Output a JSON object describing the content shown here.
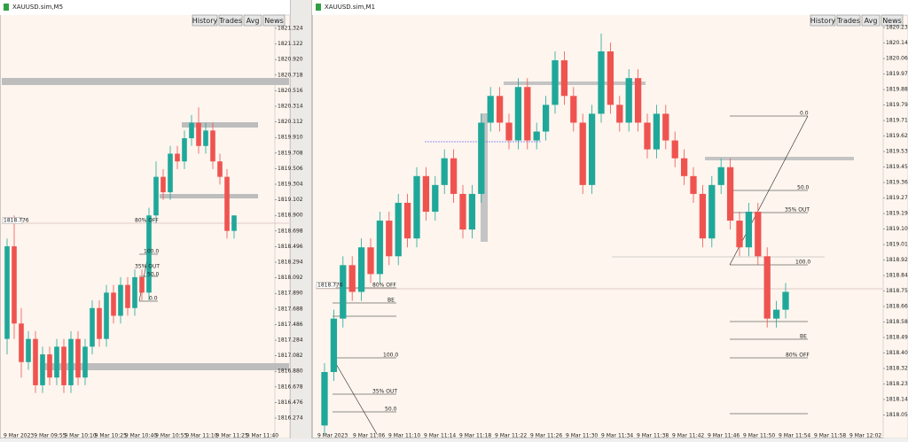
{
  "windows": [
    {
      "title": "XAUUSD.sim,M5",
      "buttons": [
        "History",
        "Trades",
        "Avg",
        "News"
      ],
      "price_marker": "1818.776",
      "ylim": [
        1816.068,
        1821.496
      ],
      "price_ticks": [
        1821.324,
        1821.122,
        {
          "value": 1820.92,
          "label": "1820.920"
        },
        1820.718,
        1820.516,
        1820.314,
        1820.112,
        {
          "value": 1819.91,
          "label": "1819.910"
        },
        1819.708,
        1819.506,
        1819.304,
        1819.102,
        {
          "value": 1818.9,
          "label": "1818.900"
        },
        1818.698,
        1818.496,
        1818.294,
        1818.092,
        {
          "value": 1817.89,
          "label": "1817.890"
        },
        1817.688,
        1817.486,
        1817.284,
        1817.082,
        {
          "value": 1816.88,
          "label": "1816.880"
        },
        1816.678,
        1816.476,
        1816.274
      ],
      "time_labels": [
        "9 Mar 2023",
        "9 Mar 09:55",
        "9 Mar 10:10",
        "9 Mar 10:25",
        "9 Mar 10:40",
        "9 Mar 10:55",
        "9 Mar 11:10",
        "9 Mar 11:25",
        "9 Mar 11:40"
      ],
      "level_labels": [
        "80% OFF",
        "100.0",
        "35% OUT",
        "50.0",
        "0.0"
      ],
      "candles": [
        [
          1817.3,
          1818.6,
          1817.1,
          1818.5
        ],
        [
          1818.5,
          1818.9,
          1817.3,
          1817.5
        ],
        [
          1817.5,
          1817.7,
          1816.8,
          1817.0
        ],
        [
          1817.0,
          1817.4,
          1816.9,
          1817.3
        ],
        [
          1817.3,
          1817.4,
          1816.6,
          1816.7
        ],
        [
          1816.7,
          1817.2,
          1816.6,
          1817.1
        ],
        [
          1817.1,
          1817.2,
          1816.7,
          1816.8
        ],
        [
          1816.8,
          1817.3,
          1816.7,
          1817.2
        ],
        [
          1817.2,
          1817.3,
          1816.6,
          1816.7
        ],
        [
          1816.7,
          1817.4,
          1816.6,
          1817.3
        ],
        [
          1817.3,
          1817.4,
          1816.7,
          1816.8
        ],
        [
          1816.8,
          1817.3,
          1816.7,
          1817.2
        ],
        [
          1817.2,
          1817.8,
          1817.1,
          1817.7
        ],
        [
          1817.7,
          1817.8,
          1817.2,
          1817.3
        ],
        [
          1817.3,
          1818.0,
          1817.2,
          1817.9
        ],
        [
          1817.9,
          1818.0,
          1817.5,
          1817.6
        ],
        [
          1817.6,
          1818.1,
          1817.5,
          1818.0
        ],
        [
          1818.0,
          1818.1,
          1817.6,
          1817.7
        ],
        [
          1817.7,
          1818.2,
          1817.6,
          1818.1
        ],
        [
          1818.1,
          1818.2,
          1817.8,
          1817.9
        ],
        [
          1817.9,
          1819.0,
          1817.8,
          1818.9
        ],
        [
          1818.9,
          1819.6,
          1818.8,
          1819.4
        ],
        [
          1819.4,
          1819.5,
          1819.1,
          1819.2
        ],
        [
          1819.2,
          1819.8,
          1819.1,
          1819.7
        ],
        [
          1819.7,
          1819.8,
          1819.5,
          1819.6
        ],
        [
          1819.6,
          1820.0,
          1819.5,
          1819.9
        ],
        [
          1819.9,
          1820.2,
          1819.8,
          1820.1
        ],
        [
          1820.1,
          1820.3,
          1819.7,
          1819.8
        ],
        [
          1819.8,
          1820.1,
          1819.7,
          1820.0
        ],
        [
          1820.0,
          1820.1,
          1819.5,
          1819.6
        ],
        [
          1819.6,
          1819.7,
          1819.3,
          1819.4
        ],
        [
          1819.4,
          1819.5,
          1818.6,
          1818.7
        ],
        [
          1818.7,
          1818.9,
          1818.6,
          1818.9
        ]
      ]
    },
    {
      "title": "XAUUSD.sim,M1",
      "buttons": [
        "History",
        "Trades",
        "Avg",
        "News"
      ],
      "price_marker": "1818.776",
      "ylim": [
        1817.952,
        1820.304
      ],
      "price_ticks": [
        1820.234,
        1820.147,
        {
          "value": 1820.06,
          "label": "1820.060"
        },
        1819.973,
        1819.886,
        1819.799,
        1819.712,
        1819.625,
        1819.538,
        1819.451,
        1819.364,
        1819.277,
        {
          "value": 1819.19,
          "label": "1819.190"
        },
        1819.103,
        1819.016,
        1818.929,
        1818.842,
        1818.755,
        1818.668,
        1818.581,
        1818.494,
        1818.407,
        {
          "value": 1818.32,
          "label": "1818.320"
        },
        1818.233,
        1818.146,
        1818.059
      ],
      "time_labels": [
        "9 Mar 2023",
        "9 Mar 11:06",
        "9 Mar 11:10",
        "9 Mar 11:14",
        "9 Mar 11:18",
        "9 Mar 11:22",
        "9 Mar 11:26",
        "9 Mar 11:30",
        "9 Mar 11:34",
        "9 Mar 11:38",
        "9 Mar 11:42",
        "9 Mar 11:46",
        "9 Mar 11:50",
        "9 Mar 11:54",
        "9 Mar 11:58",
        "9 Mar 12:02"
      ],
      "level_labels": [
        "0.0",
        "50.0",
        "35% OUT",
        "100.0",
        "BE",
        "80% OFF",
        "80% OFF",
        "BE",
        "100.0",
        "35% OUT",
        "50.0"
      ],
      "candles": [
        [
          1818.0,
          1818.35,
          1817.95,
          1818.3
        ],
        [
          1818.3,
          1818.65,
          1818.25,
          1818.6
        ],
        [
          1818.6,
          1818.95,
          1818.55,
          1818.9
        ],
        [
          1818.9,
          1818.95,
          1818.7,
          1818.75
        ],
        [
          1818.75,
          1819.05,
          1818.7,
          1819.0
        ],
        [
          1819.0,
          1819.05,
          1818.8,
          1818.85
        ],
        [
          1818.85,
          1819.2,
          1818.8,
          1819.15
        ],
        [
          1819.15,
          1819.2,
          1818.9,
          1818.95
        ],
        [
          1818.95,
          1819.3,
          1818.9,
          1819.25
        ],
        [
          1819.25,
          1819.3,
          1819.0,
          1819.05
        ],
        [
          1819.05,
          1819.45,
          1819.0,
          1819.4
        ],
        [
          1819.4,
          1819.45,
          1819.15,
          1819.2
        ],
        [
          1819.2,
          1819.4,
          1819.15,
          1819.35
        ],
        [
          1819.35,
          1819.55,
          1819.3,
          1819.5
        ],
        [
          1819.5,
          1819.55,
          1819.25,
          1819.3
        ],
        [
          1819.3,
          1819.35,
          1819.05,
          1819.1
        ],
        [
          1819.1,
          1819.35,
          1819.05,
          1819.3
        ],
        [
          1819.3,
          1819.75,
          1819.25,
          1819.7
        ],
        [
          1819.7,
          1819.9,
          1819.65,
          1819.85
        ],
        [
          1819.85,
          1819.9,
          1819.65,
          1819.7
        ],
        [
          1819.7,
          1819.75,
          1819.55,
          1819.6
        ],
        [
          1819.6,
          1819.95,
          1819.55,
          1819.9
        ],
        [
          1819.9,
          1819.95,
          1819.55,
          1819.6
        ],
        [
          1819.6,
          1819.7,
          1819.55,
          1819.65
        ],
        [
          1819.65,
          1819.85,
          1819.6,
          1819.8
        ],
        [
          1819.8,
          1820.1,
          1819.75,
          1820.05
        ],
        [
          1820.05,
          1820.1,
          1819.8,
          1819.85
        ],
        [
          1819.85,
          1819.9,
          1819.65,
          1819.7
        ],
        [
          1819.7,
          1819.75,
          1819.3,
          1819.35
        ],
        [
          1819.35,
          1819.8,
          1819.3,
          1819.75
        ],
        [
          1819.75,
          1820.2,
          1819.7,
          1820.1
        ],
        [
          1820.1,
          1820.15,
          1819.75,
          1819.8
        ],
        [
          1819.8,
          1819.85,
          1819.65,
          1819.7
        ],
        [
          1819.7,
          1820.0,
          1819.65,
          1819.95
        ],
        [
          1819.95,
          1820.0,
          1819.65,
          1819.7
        ],
        [
          1819.7,
          1819.75,
          1819.5,
          1819.55
        ],
        [
          1819.55,
          1819.8,
          1819.5,
          1819.75
        ],
        [
          1819.75,
          1819.8,
          1819.55,
          1819.6
        ],
        [
          1819.6,
          1819.65,
          1819.45,
          1819.5
        ],
        [
          1819.5,
          1819.55,
          1819.35,
          1819.4
        ],
        [
          1819.4,
          1819.45,
          1819.25,
          1819.3
        ],
        [
          1819.3,
          1819.35,
          1819.0,
          1819.05
        ],
        [
          1819.05,
          1819.4,
          1819.0,
          1819.35
        ],
        [
          1819.35,
          1819.5,
          1819.3,
          1819.45
        ],
        [
          1819.45,
          1819.5,
          1819.1,
          1819.15
        ],
        [
          1819.15,
          1819.2,
          1818.95,
          1819.0
        ],
        [
          1819.0,
          1819.25,
          1818.95,
          1819.2
        ],
        [
          1819.2,
          1819.25,
          1818.9,
          1818.95
        ],
        [
          1818.95,
          1819.0,
          1818.55,
          1818.6
        ],
        [
          1818.6,
          1818.7,
          1818.55,
          1818.65
        ],
        [
          1818.65,
          1818.8,
          1818.6,
          1818.75
        ]
      ]
    }
  ]
}
